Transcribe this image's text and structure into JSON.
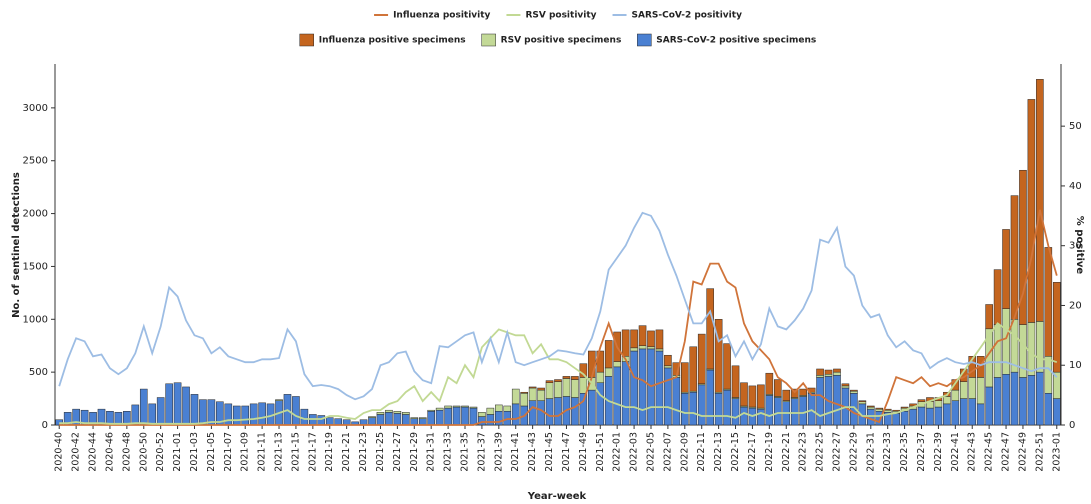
{
  "chart_data": {
    "type": "bar",
    "y_label": "No. of sentinel detections",
    "y2_label": "% positive",
    "x_label": "Year-week",
    "categories": [
      "2020-40",
      null,
      "2020-42",
      null,
      "2020-44",
      null,
      "2020-46",
      null,
      "2020-48",
      null,
      "2020-50",
      null,
      "2020-52",
      null,
      "2021-01",
      null,
      "2021-03",
      null,
      "2021-05",
      null,
      "2021-07",
      null,
      "2021-09",
      null,
      "2021-11",
      null,
      "2021-13",
      null,
      "2021-15",
      null,
      "2021-17",
      null,
      "2021-19",
      null,
      "2021-21",
      null,
      "2021-23",
      null,
      "2021-25",
      null,
      "2021-27",
      null,
      "2021-29",
      null,
      "2021-31",
      null,
      "2021-33",
      null,
      "2021-35",
      null,
      "2021-37",
      null,
      "2021-39",
      null,
      "2021-41",
      null,
      "2021-43",
      null,
      "2021-45",
      null,
      "2021-47",
      null,
      "2021-49",
      null,
      "2021-51",
      null,
      "2022-01",
      null,
      "2022-03",
      null,
      "2022-05",
      null,
      "2022-07",
      null,
      "2022-09",
      null,
      "2022-11",
      null,
      "2022-13",
      null,
      "2022-15",
      null,
      "2022-17",
      null,
      "2022-19",
      null,
      "2022-21",
      null,
      "2022-23",
      null,
      "2022-25",
      null,
      "2022-27",
      null,
      "2022-29",
      null,
      "2022-31",
      null,
      "2022-33",
      null,
      "2022-35",
      null,
      "2022-37",
      null,
      "2022-39",
      null,
      "2022-41",
      null,
      "2022-43",
      null,
      "2022-45",
      null,
      "2022-47",
      null,
      "2022-49",
      null,
      "2022-51",
      null,
      "2023-01"
    ],
    "series": [
      {
        "name": "Influenza positivity",
        "type": "line",
        "axis": "y2",
        "color": "#d0743a",
        "values": [
          0,
          0,
          0,
          0,
          0,
          0,
          0,
          0,
          0,
          0,
          0,
          0,
          0,
          0,
          0,
          0,
          0,
          0,
          0,
          0,
          0,
          0,
          0,
          0,
          0,
          0,
          0,
          0,
          0,
          0,
          0,
          0,
          0,
          0,
          0,
          0,
          0,
          0,
          0,
          0,
          0,
          0,
          0,
          0,
          0,
          0,
          0,
          0,
          0,
          0,
          0.5,
          0.5,
          0.5,
          1,
          1,
          1.5,
          3,
          2.5,
          1.5,
          1.5,
          2.5,
          3,
          4,
          8,
          13,
          17,
          13,
          11,
          8,
          7.5,
          6.5,
          7,
          7.5,
          8,
          14,
          24,
          23.5,
          27,
          27,
          24,
          23,
          17,
          14,
          12.5,
          11,
          8,
          7,
          5.5,
          7,
          5,
          5,
          4,
          3.5,
          3,
          2,
          1.5,
          1,
          0.5,
          4,
          8,
          7.5,
          7,
          8,
          6.5,
          7,
          6.5,
          7.5,
          8,
          9,
          10,
          12,
          14,
          14.5,
          18,
          22,
          28,
          36,
          30,
          25
        ]
      },
      {
        "name": "RSV positivity",
        "type": "line",
        "axis": "y2",
        "color": "#c2d994",
        "values": [
          0.3,
          0.3,
          0.5,
          0.3,
          0.3,
          0.3,
          0.2,
          0.2,
          0.2,
          0.3,
          0.3,
          0.2,
          0.2,
          0.2,
          0.2,
          0.2,
          0.2,
          0.3,
          0.5,
          0.5,
          0.8,
          0.8,
          0.9,
          1,
          1.2,
          1.5,
          2,
          2.5,
          1.5,
          1,
          1,
          1,
          1.5,
          1.5,
          1.2,
          1,
          2,
          2.5,
          2.5,
          3.5,
          4,
          5.5,
          6.5,
          4,
          5.5,
          4,
          8,
          7,
          10,
          8,
          13,
          14.5,
          16,
          15.5,
          15,
          15,
          12,
          13.5,
          11,
          11,
          10.5,
          9.5,
          8.5,
          7,
          5,
          4,
          3.5,
          3,
          3,
          2.5,
          3,
          3,
          3,
          2.5,
          2,
          2,
          1.5,
          1.5,
          1.5,
          1.5,
          1.2,
          2,
          1.5,
          2,
          1.5,
          2,
          2,
          2,
          2,
          2.5,
          1.5,
          2,
          2.5,
          3,
          3,
          1.5,
          1.5,
          1.5,
          1.8,
          2,
          2.5,
          3,
          3.5,
          4,
          4.5,
          5,
          7,
          9,
          11,
          13,
          15,
          17,
          16,
          15,
          13.5,
          12,
          11,
          11,
          10.5
        ]
      },
      {
        "name": "SARS-CoV-2 positivity",
        "type": "line",
        "axis": "y2",
        "color": "#9dbde4",
        "values": [
          6.5,
          11,
          14.5,
          14,
          11.5,
          11.8,
          9.5,
          8.5,
          9.5,
          12,
          16.5,
          12,
          16.5,
          23,
          21.5,
          17.5,
          15,
          14.5,
          12,
          13,
          11.5,
          11,
          10.5,
          10.5,
          11,
          11,
          11.2,
          16,
          14,
          8.5,
          6.5,
          6.7,
          6.5,
          6,
          5,
          4.3,
          4.8,
          6,
          10,
          10.5,
          12,
          12.3,
          9,
          7.5,
          7,
          13.2,
          13,
          14,
          15,
          15.5,
          10.5,
          14.5,
          10.5,
          15.5,
          10.5,
          10,
          10.5,
          11,
          11.5,
          12.5,
          12.3,
          12,
          11.8,
          14.5,
          19,
          26,
          28,
          30,
          33,
          35.5,
          35,
          32.5,
          28.5,
          25,
          21,
          17,
          17,
          19,
          14,
          15,
          11.5,
          14,
          11,
          13.5,
          19.5,
          16.5,
          16,
          17.5,
          19.5,
          22.5,
          31,
          30.5,
          33,
          26.5,
          25,
          20,
          18,
          18.5,
          15,
          13,
          14,
          12.5,
          12,
          9.5,
          10.5,
          11.2,
          10.5,
          10.2,
          10.5,
          10,
          10.5,
          10.5,
          10.5,
          10,
          9.5,
          9,
          9.5,
          9.5,
          8
        ]
      },
      {
        "name": "Influenza positive specimens",
        "type": "bar",
        "color": "#c4651f",
        "values": [
          0,
          0,
          0,
          0,
          0,
          0,
          0,
          0,
          0,
          0,
          0,
          0,
          0,
          0,
          0,
          0,
          0,
          0,
          0,
          0,
          0,
          0,
          0,
          0,
          0,
          0,
          0,
          0,
          0,
          0,
          0,
          0,
          0,
          0,
          0,
          0,
          0,
          0,
          0,
          0,
          0,
          0,
          0,
          0,
          0,
          0,
          0,
          0,
          0,
          0,
          0,
          0,
          0,
          0,
          0,
          10,
          10,
          20,
          20,
          20,
          20,
          30,
          130,
          250,
          200,
          260,
          280,
          250,
          170,
          190,
          150,
          180,
          100,
          120,
          280,
          420,
          470,
          760,
          690,
          430,
          300,
          220,
          200,
          220,
          200,
          160,
          100,
          80,
          60,
          40,
          60,
          40,
          30,
          20,
          10,
          10,
          10,
          10,
          10,
          10,
          10,
          20,
          20,
          40,
          30,
          40,
          100,
          120,
          200,
          200,
          230,
          520,
          750,
          1170,
          1460,
          2110,
          2290,
          1030,
          850
        ]
      },
      {
        "name": "RSV positive specimens",
        "type": "bar",
        "color": "#c3d997",
        "values": [
          0,
          0,
          0,
          0,
          0,
          0,
          0,
          0,
          0,
          0,
          0,
          0,
          0,
          0,
          0,
          0,
          0,
          0,
          0,
          0,
          0,
          0,
          0,
          0,
          0,
          0,
          10,
          0,
          0,
          0,
          0,
          0,
          0,
          0,
          0,
          0,
          0,
          10,
          20,
          20,
          20,
          20,
          10,
          10,
          10,
          20,
          20,
          10,
          10,
          10,
          40,
          60,
          60,
          50,
          140,
          120,
          120,
          100,
          150,
          150,
          170,
          170,
          150,
          120,
          100,
          80,
          50,
          50,
          30,
          30,
          20,
          20,
          20,
          20,
          10,
          10,
          10,
          10,
          10,
          10,
          10,
          10,
          10,
          10,
          10,
          10,
          10,
          10,
          10,
          10,
          20,
          20,
          30,
          20,
          20,
          20,
          20,
          20,
          20,
          20,
          30,
          30,
          50,
          60,
          60,
          70,
          100,
          160,
          200,
          250,
          550,
          500,
          620,
          500,
          500,
          500,
          480,
          350,
          250
        ]
      },
      {
        "name": "SARS-CoV-2 positive specimens",
        "type": "bar",
        "color": "#4a80d2",
        "values": [
          50,
          120,
          150,
          140,
          120,
          150,
          130,
          120,
          130,
          190,
          340,
          200,
          260,
          390,
          400,
          360,
          290,
          240,
          240,
          220,
          200,
          180,
          180,
          200,
          210,
          200,
          230,
          290,
          270,
          150,
          100,
          90,
          70,
          60,
          50,
          30,
          50,
          70,
          100,
          120,
          110,
          100,
          60,
          60,
          130,
          140,
          160,
          170,
          170,
          160,
          80,
          100,
          130,
          130,
          200,
          180,
          230,
          230,
          250,
          260,
          270,
          260,
          300,
          330,
          400,
          460,
          550,
          600,
          700,
          720,
          720,
          700,
          540,
          450,
          300,
          310,
          380,
          520,
          300,
          330,
          250,
          170,
          160,
          150,
          280,
          260,
          220,
          250,
          270,
          300,
          450,
          460,
          470,
          350,
          300,
          200,
          150,
          130,
          120,
          110,
          130,
          150,
          170,
          160,
          170,
          200,
          230,
          250,
          250,
          200,
          360,
          450,
          480,
          500,
          450,
          470,
          500,
          300,
          250
        ]
      }
    ],
    "ylim": [
      0,
      3415
    ],
    "yticks": [
      0,
      500,
      1000,
      1500,
      2000,
      2500,
      3000
    ],
    "y2lim": [
      0,
      60.4
    ],
    "y2ticks": [
      0,
      10,
      20,
      30,
      40,
      50
    ]
  }
}
